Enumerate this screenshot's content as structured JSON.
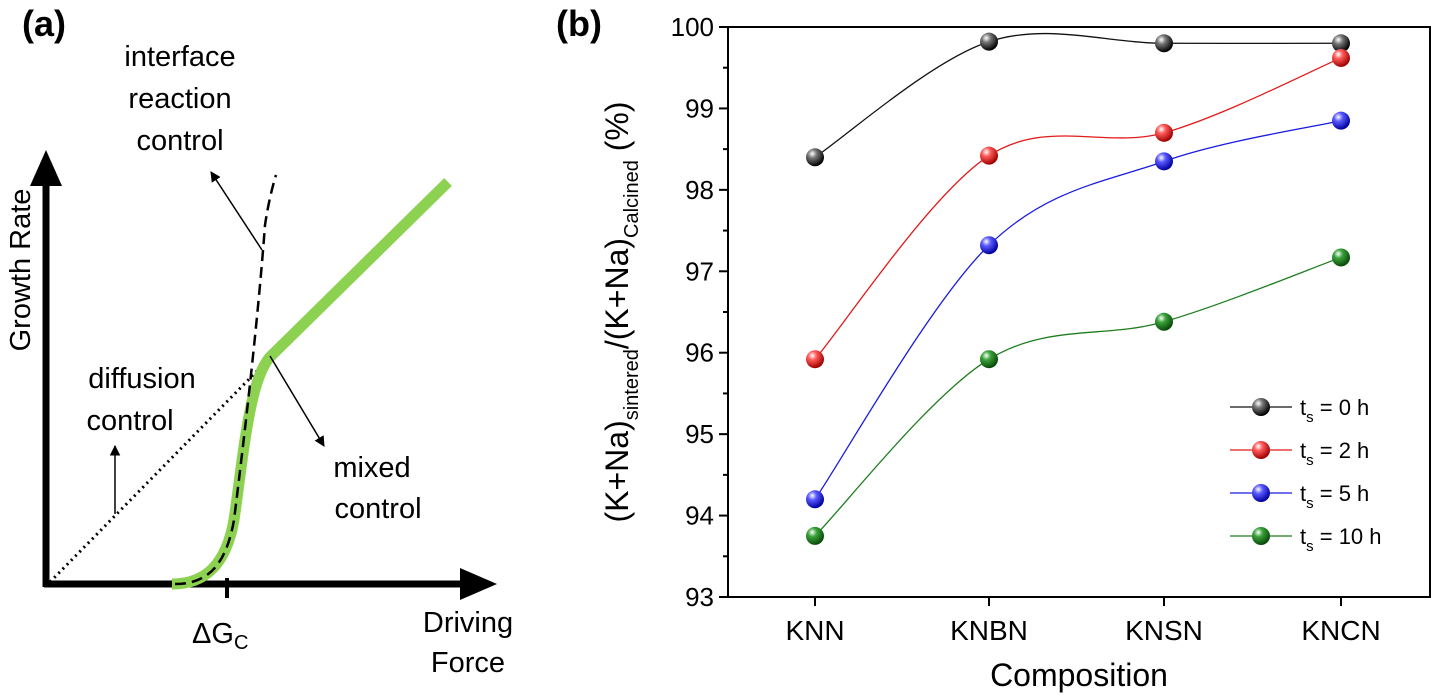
{
  "panel_a": {
    "label": "(a)",
    "ylabel": "Growth Rate",
    "xlabel_line1": "Driving",
    "xlabel_line2": "Force",
    "critical_mark": "ΔG",
    "critical_sub": "C",
    "anno_interface": [
      "interface",
      "reaction",
      "control"
    ],
    "anno_diffusion": [
      "diffusion",
      "control"
    ],
    "anno_mixed": [
      "mixed",
      "control"
    ],
    "colors": {
      "mixed_curve": "#8cd250",
      "axes": "#000000"
    }
  },
  "panel_b": {
    "label": "(b)"
  },
  "chart_data": [
    {
      "type": "diagram",
      "title": "",
      "xlabel": "Driving Force",
      "ylabel": "Growth Rate",
      "regimes": [
        "interface reaction control",
        "diffusion control",
        "mixed control"
      ],
      "marked_x": "ΔGC"
    },
    {
      "type": "line",
      "title": "",
      "xlabel": "Composition",
      "ylabel_parts": {
        "p1": "(K+Na)",
        "sub1": "sintered",
        "p2": "/(K+Na)",
        "sub2": "Calcined",
        "p3": " (%)"
      },
      "categories": [
        "KNN",
        "KNBN",
        "KNSN",
        "KNCN"
      ],
      "ylim": [
        93,
        100
      ],
      "yticks": [
        "93",
        "94",
        "95",
        "96",
        "97",
        "98",
        "99",
        "100"
      ],
      "grid": false,
      "legend_position": "bottom-right",
      "series": [
        {
          "label_pre": "t",
          "label_sub": "s",
          "label_post": " = 0 h",
          "color": "#111111",
          "values": [
            98.4,
            99.82,
            99.8,
            99.8
          ]
        },
        {
          "label_pre": "t",
          "label_sub": "s",
          "label_post": " = 2 h",
          "color": "#e21a1a",
          "values": [
            95.92,
            98.42,
            98.7,
            99.62
          ]
        },
        {
          "label_pre": "t",
          "label_sub": "s",
          "label_post": " = 5 h",
          "color": "#1a1ae0",
          "values": [
            94.2,
            97.32,
            98.35,
            98.85
          ]
        },
        {
          "label_pre": "t",
          "label_sub": "s",
          "label_post": " = 10 h",
          "color": "#1e7d1e",
          "values": [
            93.75,
            95.92,
            96.38,
            97.17
          ]
        }
      ]
    }
  ]
}
